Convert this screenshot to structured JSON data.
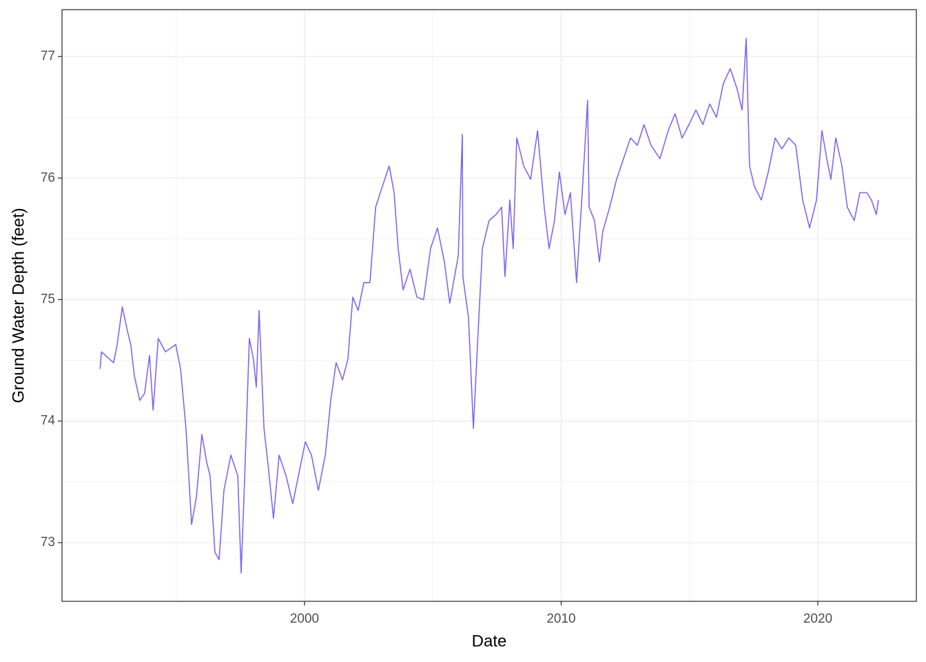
{
  "chart_data": {
    "type": "line",
    "x_label": "Date",
    "y_label": "Ground Water Depth (feet)",
    "x": [
      1992.03,
      1992.09,
      1992.56,
      1992.7,
      1992.9,
      1993.1,
      1993.23,
      1993.37,
      1993.58,
      1993.77,
      1993.96,
      1994.1,
      1994.3,
      1994.58,
      1994.98,
      1995.17,
      1995.38,
      1995.6,
      1995.79,
      1996.0,
      1996.19,
      1996.32,
      1996.51,
      1996.67,
      1996.86,
      1997.13,
      1997.4,
      1997.53,
      1997.66,
      1997.85,
      1998.01,
      1998.12,
      1998.23,
      1998.42,
      1998.6,
      1998.79,
      1999.01,
      1999.28,
      1999.54,
      1999.81,
      2000.03,
      2000.27,
      2000.54,
      2000.81,
      2001.02,
      2001.23,
      2001.48,
      2001.69,
      2001.88,
      2002.09,
      2002.31,
      2002.55,
      2002.77,
      2003.03,
      2003.3,
      2003.49,
      2003.65,
      2003.84,
      2004.11,
      2004.38,
      2004.64,
      2004.91,
      2005.18,
      2005.45,
      2005.66,
      2005.99,
      2006.15,
      2006.17,
      2006.39,
      2006.58,
      2006.74,
      2006.93,
      2007.19,
      2007.46,
      2007.68,
      2007.81,
      2008.0,
      2008.13,
      2008.27,
      2008.54,
      2008.81,
      2009.08,
      2009.34,
      2009.53,
      2009.74,
      2009.93,
      2010.15,
      2010.36,
      2010.6,
      2010.82,
      2011.03,
      2011.09,
      2011.3,
      2011.49,
      2011.62,
      2011.89,
      2012.16,
      2012.43,
      2012.7,
      2012.97,
      2013.23,
      2013.5,
      2013.85,
      2014.17,
      2014.44,
      2014.71,
      2014.98,
      2015.25,
      2015.52,
      2015.79,
      2016.05,
      2016.32,
      2016.59,
      2016.86,
      2017.05,
      2017.21,
      2017.34,
      2017.53,
      2017.8,
      2018.07,
      2018.34,
      2018.6,
      2018.87,
      2019.14,
      2019.41,
      2019.68,
      2019.95,
      2020.16,
      2020.35,
      2020.51,
      2020.7,
      2020.94,
      2021.15,
      2021.42,
      2021.64,
      2021.91,
      2022.09,
      2022.28,
      2022.36
    ],
    "series": [
      {
        "name": "depth",
        "color": "#7b68ee",
        "values": [
          74.43,
          74.57,
          74.48,
          74.63,
          74.94,
          74.74,
          74.63,
          74.37,
          74.17,
          74.23,
          74.54,
          74.09,
          74.68,
          74.57,
          74.63,
          74.43,
          73.94,
          73.15,
          73.38,
          73.89,
          73.66,
          73.55,
          72.92,
          72.86,
          73.43,
          73.72,
          73.55,
          72.75,
          73.49,
          74.68,
          74.51,
          74.28,
          74.91,
          73.94,
          73.6,
          73.2,
          73.72,
          73.55,
          73.32,
          73.6,
          73.83,
          73.72,
          73.43,
          73.72,
          74.17,
          74.48,
          74.34,
          74.51,
          75.02,
          74.91,
          75.14,
          75.14,
          75.76,
          75.93,
          76.1,
          75.88,
          75.42,
          75.08,
          75.25,
          75.02,
          75.0,
          75.42,
          75.59,
          75.31,
          74.97,
          75.36,
          76.36,
          75.19,
          74.85,
          73.94,
          74.63,
          75.42,
          75.65,
          75.7,
          75.76,
          75.19,
          75.82,
          75.42,
          76.33,
          76.1,
          75.99,
          76.39,
          75.76,
          75.42,
          75.65,
          76.05,
          75.7,
          75.88,
          75.14,
          75.88,
          76.64,
          75.76,
          75.65,
          75.31,
          75.56,
          75.76,
          75.99,
          76.16,
          76.33,
          76.27,
          76.44,
          76.27,
          76.16,
          76.39,
          76.53,
          76.33,
          76.44,
          76.56,
          76.44,
          76.61,
          76.5,
          76.78,
          76.9,
          76.73,
          76.56,
          77.15,
          76.1,
          75.93,
          75.82,
          76.05,
          76.33,
          76.24,
          76.33,
          76.27,
          75.82,
          75.59,
          75.82,
          76.39,
          76.16,
          75.99,
          76.33,
          76.1,
          75.76,
          75.65,
          75.88,
          75.88,
          75.82,
          75.7,
          75.82
        ]
      }
    ],
    "xlim": [
      1990.55,
      2023.84
    ],
    "xticks": [
      2000,
      2010,
      2020
    ],
    "ylim": [
      72.517,
      77.386
    ],
    "yticks": [
      73,
      74,
      75,
      76,
      77
    ],
    "grid": true
  }
}
